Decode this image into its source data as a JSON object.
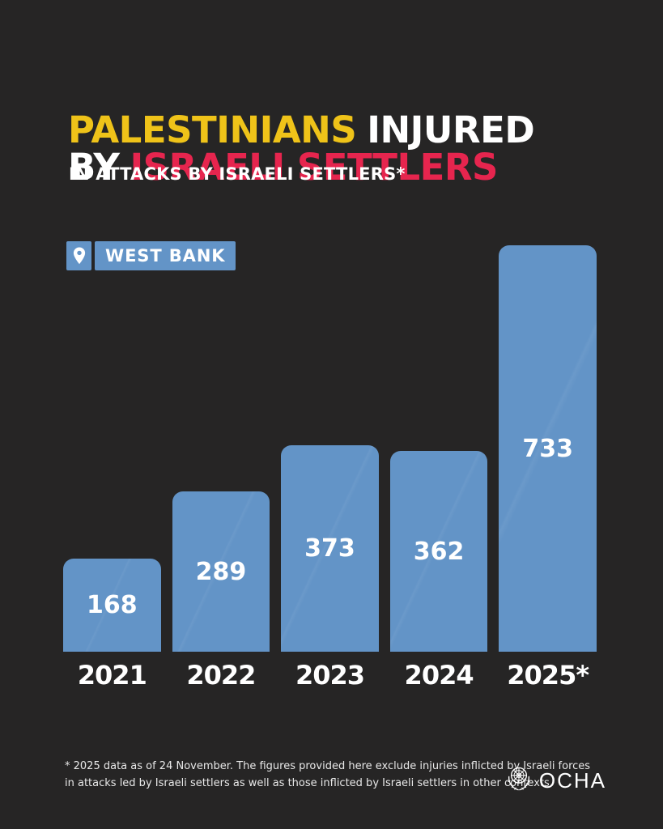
{
  "colors": {
    "background": "#262525",
    "bar_blue": "#6394C7",
    "title_yellow": "#EFC319",
    "title_red": "#E6254E",
    "text_white": "#FFFFFF",
    "footnote_gray": "#E8E8E8"
  },
  "header": {
    "title_line1_highlight": "PALESTINIANS",
    "title_line1_rest": "INJURED",
    "title_line2_prefix": "BY",
    "title_line2_highlight": "ISRAELI SETTLERS",
    "subtitle": "IN ATTACKS BY ISRAELI SETTLERS*"
  },
  "location_badge": {
    "icon": "location-pin-icon",
    "label": "WEST BANK"
  },
  "chart_data": {
    "type": "bar",
    "title": "PALESTINIANS INJURED BY ISRAELI SETTLERS",
    "subtitle": "IN ATTACKS BY ISRAELI SETTLERS*",
    "categories": [
      "2021",
      "2022",
      "2023",
      "2024",
      "2025*"
    ],
    "values": [
      168,
      289,
      373,
      362,
      733
    ],
    "bar_color": "#6394C7",
    "value_label_color": "#FFFFFF",
    "value_labels_shown": true,
    "xlabel": "",
    "ylabel": "",
    "ylim": [
      0,
      733
    ],
    "grid": false,
    "legend": false,
    "axes_shown": false
  },
  "footnote": {
    "lines": [
      "* 2025 data as of 24 November. The figures provided here exclude injuries inflicted by Israeli forces",
      "in attacks led by Israeli settlers as well as those inflicted by Israeli settlers in other contexts."
    ]
  },
  "logo": {
    "emblem": "un-emblem-icon",
    "org_name": "OCHA"
  }
}
